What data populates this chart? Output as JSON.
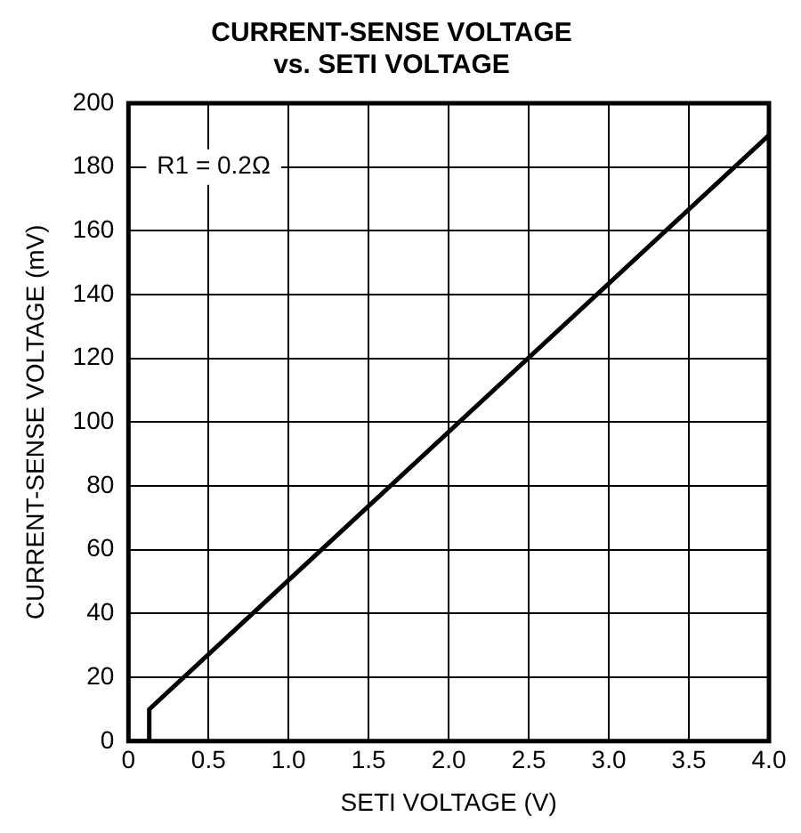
{
  "chart_data": {
    "type": "line",
    "title": [
      "CURRENT-SENSE VOLTAGE",
      "vs. SETI VOLTAGE"
    ],
    "xlabel": "SETI VOLTAGE (V)",
    "ylabel": "CURRENT-SENSE VOLTAGE (mV)",
    "x": [
      0,
      0.13,
      0.13,
      4.0
    ],
    "series": [
      {
        "color": "#000000",
        "values": [
          0,
          0,
          10,
          190
        ]
      }
    ],
    "xlim": [
      0,
      4.0
    ],
    "xticks": [
      0,
      {
        "value": 0.5,
        "label": "0.5"
      },
      {
        "value": 1,
        "label": "1.0"
      },
      {
        "value": 1.5,
        "label": "1.5"
      },
      {
        "value": 2,
        "label": "2.0"
      },
      {
        "value": 2.5,
        "label": "2.5"
      },
      {
        "value": 3,
        "label": "3.0"
      },
      {
        "value": 3.5,
        "label": "3.5"
      },
      {
        "value": 4,
        "label": "4.0"
      }
    ],
    "ylim": [
      0,
      200
    ],
    "yticks": [
      0,
      20,
      40,
      60,
      80,
      100,
      120,
      140,
      160,
      180,
      200
    ],
    "grid": true,
    "legend": false,
    "marker": "none",
    "line_style": "solid",
    "annotations": [
      "R1 = 0.2Ω"
    ]
  }
}
